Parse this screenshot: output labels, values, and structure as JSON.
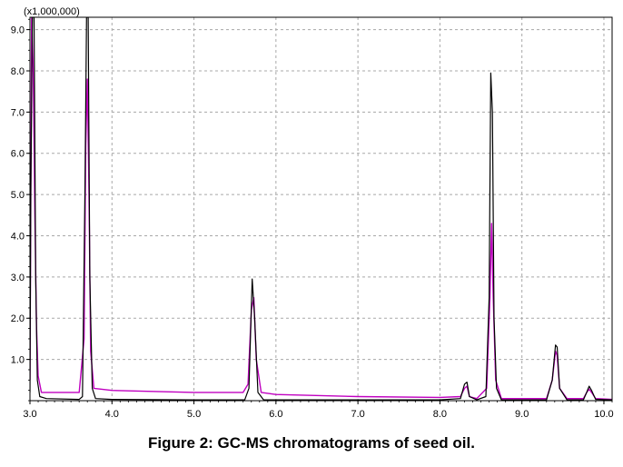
{
  "caption": "Figure 2: GC-MS chromatograms of seed oil.",
  "chart_data": {
    "type": "line",
    "title": "",
    "xlabel": "",
    "ylabel": "",
    "y_multiplier_label": "(x1,000,000)",
    "xlim": [
      3.0,
      10.1
    ],
    "ylim": [
      0,
      9.3
    ],
    "x_ticks": [
      "3.0",
      "4.0",
      "5.0",
      "6.0",
      "7.0",
      "8.0",
      "9.0",
      "10.0"
    ],
    "y_ticks": [
      "1.0",
      "2.0",
      "3.0",
      "4.0",
      "5.0",
      "6.0",
      "7.0",
      "8.0",
      "9.0"
    ],
    "grid": true,
    "series": [
      {
        "color": "#c000c0",
        "x": [
          3.0,
          3.02,
          3.04,
          3.06,
          3.08,
          3.1,
          3.14,
          3.3,
          3.6,
          3.66,
          3.68,
          3.7,
          3.72,
          3.74,
          3.78,
          4.0,
          5.0,
          5.6,
          5.66,
          5.7,
          5.73,
          5.76,
          5.82,
          6.0,
          7.0,
          8.0,
          8.25,
          8.3,
          8.33,
          8.36,
          8.45,
          8.57,
          8.61,
          8.63,
          8.65,
          8.68,
          8.75,
          9.3,
          9.37,
          9.41,
          9.43,
          9.46,
          9.55,
          9.75,
          9.79,
          9.82,
          9.85,
          9.9,
          10.1
        ],
        "y": [
          0.5,
          9.3,
          8.0,
          4.5,
          1.8,
          0.6,
          0.2,
          0.2,
          0.2,
          1.5,
          6.2,
          7.8,
          5.0,
          1.2,
          0.3,
          0.25,
          0.2,
          0.2,
          0.4,
          2.2,
          2.5,
          1.0,
          0.2,
          0.15,
          0.1,
          0.08,
          0.1,
          0.3,
          0.35,
          0.1,
          0.05,
          0.3,
          2.5,
          4.3,
          2.5,
          0.5,
          0.05,
          0.05,
          0.5,
          1.2,
          1.1,
          0.3,
          0.05,
          0.05,
          0.2,
          0.28,
          0.2,
          0.05,
          0.03
        ]
      },
      {
        "color": "#000000",
        "x": [
          3.0,
          3.01,
          3.03,
          3.05,
          3.07,
          3.09,
          3.12,
          3.2,
          3.6,
          3.64,
          3.67,
          3.69,
          3.71,
          3.73,
          3.76,
          3.8,
          4.0,
          5.0,
          5.62,
          5.67,
          5.71,
          5.74,
          5.78,
          5.85,
          6.0,
          7.0,
          8.0,
          8.25,
          8.3,
          8.33,
          8.36,
          8.45,
          8.56,
          8.6,
          8.62,
          8.64,
          8.66,
          8.69,
          8.75,
          9.3,
          9.37,
          9.41,
          9.43,
          9.46,
          9.55,
          9.75,
          9.79,
          9.82,
          9.85,
          9.9,
          10.1
        ],
        "y": [
          0.2,
          5.0,
          9.3,
          9.3,
          3.0,
          0.5,
          0.1,
          0.05,
          0.03,
          0.1,
          5.0,
          9.3,
          9.3,
          3.0,
          0.3,
          0.05,
          0.03,
          0.02,
          0.02,
          0.3,
          2.95,
          2.0,
          0.2,
          0.02,
          0.02,
          0.02,
          0.02,
          0.05,
          0.4,
          0.45,
          0.1,
          0.02,
          0.1,
          2.5,
          7.95,
          7.0,
          2.0,
          0.3,
          0.02,
          0.02,
          0.5,
          1.35,
          1.3,
          0.3,
          0.02,
          0.02,
          0.2,
          0.35,
          0.25,
          0.03,
          0.02
        ]
      }
    ]
  }
}
